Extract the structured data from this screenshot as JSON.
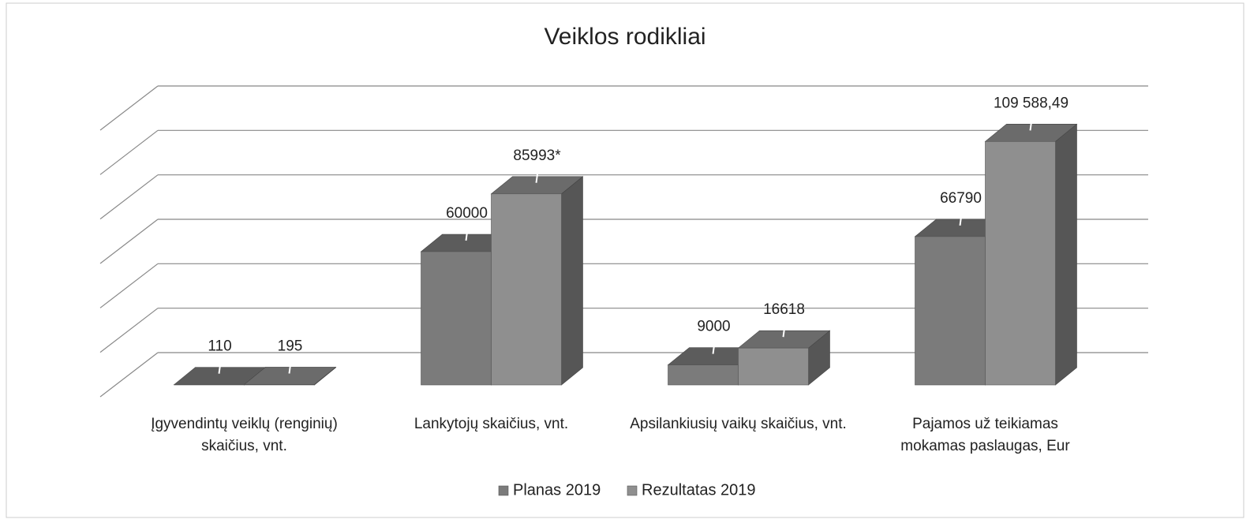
{
  "chart_data": {
    "type": "bar3d",
    "title": "Veiklos rodikliai",
    "categories": [
      "Įgyvendintų veiklų (renginių) skaičius, vnt.",
      "Lankytojų skaičius, vnt.",
      "Apsilankiusių vaikų skaičius, vnt.",
      "Pajamos už teikiamas mokamas paslaugas, Eur"
    ],
    "series": [
      {
        "name": "Planas 2019",
        "color": "#7b7b7b",
        "values": [
          110,
          60000,
          9000,
          66790
        ]
      },
      {
        "name": "Rezultatas 2019",
        "color": "#8f8f8f",
        "values": [
          195,
          85993,
          16618,
          109588.49
        ],
        "value_labels": [
          "195",
          "85993*",
          "16618",
          "109 588,49"
        ]
      }
    ],
    "ylim": [
      0,
      120000
    ],
    "yticks": [
      0,
      20000,
      40000,
      60000,
      80000,
      100000,
      120000
    ],
    "grid": true,
    "legend": "bottom"
  }
}
